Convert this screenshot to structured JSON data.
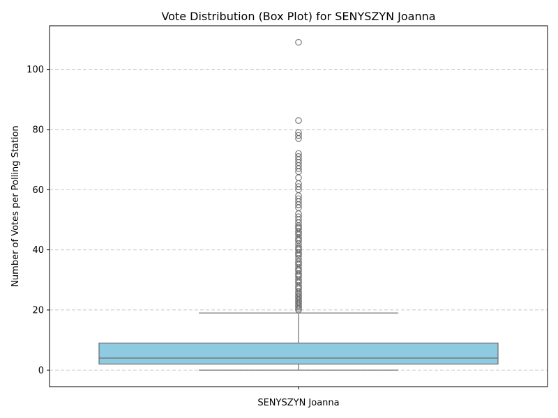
{
  "chart_data": {
    "type": "box",
    "title": "Vote Distribution (Box Plot) for SENYSZYN Joanna",
    "xlabel": "",
    "ylabel": "Number of Votes per Polling Station",
    "categories": [
      "SENYSZYN Joanna"
    ],
    "ylim": [
      -5.5,
      114.5
    ],
    "yticks": [
      0,
      20,
      40,
      60,
      80,
      100
    ],
    "grid": "y-dashed",
    "legend": "none",
    "box": {
      "whisker_low": 0,
      "q1": 2,
      "median": 4,
      "q3": 9,
      "whisker_high": 19
    },
    "outliers": [
      20,
      20.5,
      21,
      21.5,
      22,
      22.5,
      23,
      23.5,
      24,
      24.5,
      25,
      25.5,
      26,
      27,
      27.5,
      28,
      29,
      29.5,
      30,
      31,
      31.5,
      32,
      33,
      33.5,
      34,
      35,
      35.5,
      36,
      37,
      38,
      38.5,
      39,
      40,
      40.5,
      41,
      42,
      43,
      43.5,
      44,
      45,
      45.5,
      46,
      47,
      47.5,
      48,
      49,
      50,
      51,
      52,
      54,
      55,
      56,
      57,
      58,
      60,
      61,
      62,
      64,
      66,
      67,
      68,
      69,
      70,
      71,
      72,
      77,
      78,
      79,
      83,
      109
    ],
    "colors": {
      "box_fill": "#8ecae0",
      "line": "#6b6b6b",
      "grid": "#c8c8c8"
    }
  }
}
